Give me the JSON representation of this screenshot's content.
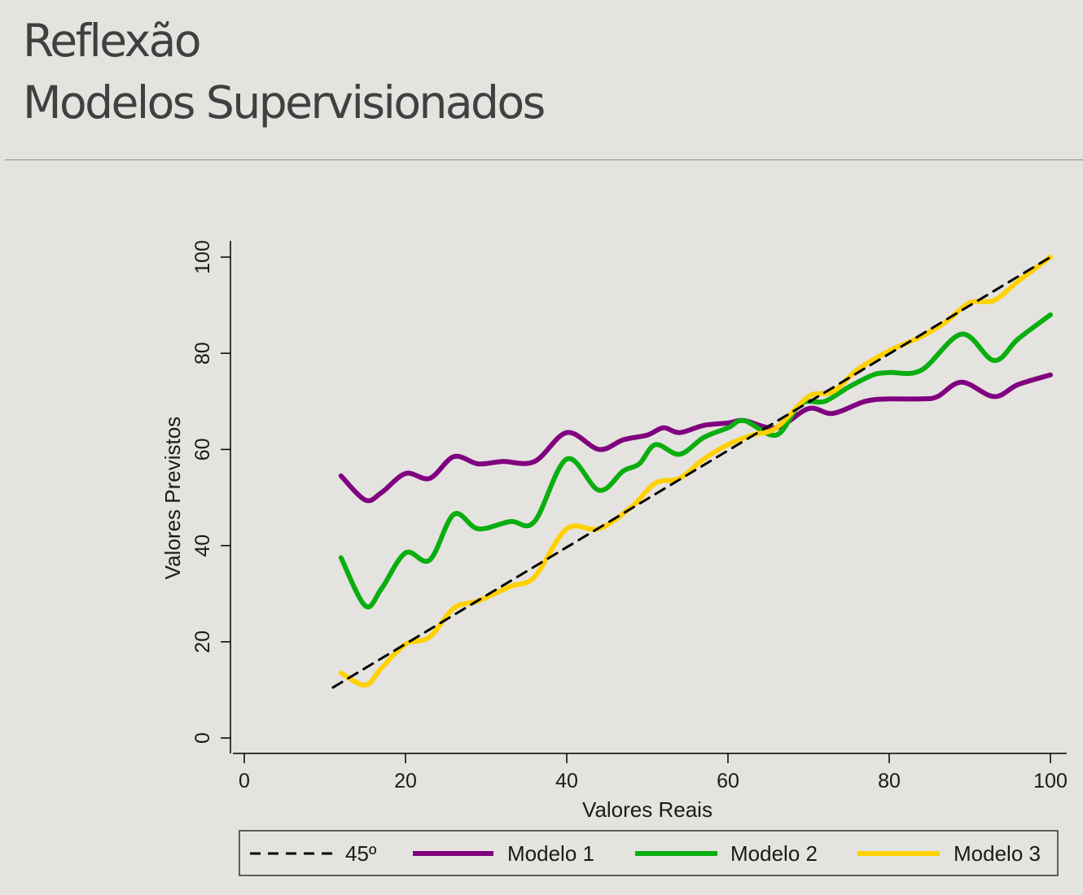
{
  "slide": {
    "title_line1": "Reflexão",
    "title_line2": "Modelos Supervisionados"
  },
  "chart_data": {
    "type": "line",
    "xlabel": "Valores Reais",
    "ylabel": "Valores Previstos",
    "xlim": [
      0,
      100
    ],
    "ylim": [
      0,
      100
    ],
    "xticks": [
      0,
      20,
      40,
      60,
      80,
      100
    ],
    "yticks": [
      0,
      20,
      40,
      60,
      80,
      100
    ],
    "grid": false,
    "legend_position": "bottom",
    "series": [
      {
        "name": "45º",
        "color": "#000000",
        "style": "dashed",
        "x": [
          11,
          100
        ],
        "y": [
          10.5,
          100
        ]
      },
      {
        "name": "Modelo 1",
        "color": "#800080",
        "style": "solid",
        "x": [
          12,
          15,
          17,
          20,
          23,
          26,
          29,
          32,
          36,
          40,
          44,
          47,
          50,
          52,
          54,
          57,
          60,
          62,
          66,
          70,
          73,
          77,
          80,
          84,
          86,
          89,
          93,
          96,
          100
        ],
        "y": [
          54.5,
          49.5,
          51,
          55,
          54,
          58.5,
          57,
          57.5,
          57.5,
          63.5,
          60,
          62,
          63,
          64.5,
          63.5,
          65,
          65.5,
          66,
          64.5,
          68.5,
          67.5,
          70,
          70.5,
          70.5,
          71,
          74,
          71,
          73.5,
          75.5
        ]
      },
      {
        "name": "Modelo 2",
        "color": "#0aae10",
        "style": "solid",
        "x": [
          12,
          15,
          17,
          20,
          23,
          26,
          29,
          33,
          36,
          40,
          44,
          47,
          49,
          51,
          54,
          57,
          60,
          62,
          66,
          69,
          72,
          75,
          78,
          80,
          84,
          89,
          93,
          96,
          100
        ],
        "y": [
          37.5,
          27.5,
          31,
          38.5,
          37,
          46.5,
          43.5,
          45,
          45,
          58,
          51.5,
          55.5,
          57,
          61,
          59,
          62.5,
          64.5,
          66,
          63,
          69.5,
          70,
          73,
          75.5,
          76,
          76.5,
          84,
          78.5,
          83,
          88
        ]
      },
      {
        "name": "Modelo 3",
        "color": "#ffd100",
        "style": "solid",
        "x": [
          12,
          15,
          17,
          20,
          23,
          26,
          29,
          33,
          36,
          40,
          44,
          48,
          51,
          54,
          57,
          60,
          63,
          66,
          70,
          73,
          76,
          80,
          84,
          87,
          90,
          93,
          96,
          100
        ],
        "y": [
          13.5,
          11,
          14.5,
          19.5,
          21,
          27,
          28.5,
          31.5,
          33.5,
          43.5,
          43.5,
          48,
          53,
          54,
          58,
          61,
          63,
          64.5,
          71,
          72,
          76.5,
          80.5,
          83.5,
          86.5,
          90.5,
          91,
          95,
          100
        ]
      }
    ]
  }
}
